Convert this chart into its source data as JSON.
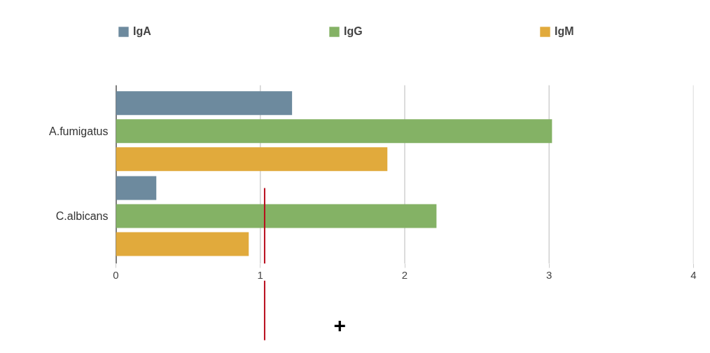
{
  "chart_data": {
    "type": "bar",
    "orientation": "horizontal",
    "categories": [
      "A.fumigatus",
      "C.albicans"
    ],
    "series": [
      {
        "name": "IgA",
        "color": "#6d8a9e",
        "values": [
          1.22,
          0.28
        ]
      },
      {
        "name": "IgG",
        "color": "#84b265",
        "values": [
          3.02,
          2.22
        ]
      },
      {
        "name": "IgM",
        "color": "#e1aa3c",
        "values": [
          1.88,
          0.92
        ]
      }
    ],
    "xlim": [
      0,
      4
    ],
    "xticks": [
      0,
      1,
      2,
      3,
      4
    ],
    "grid": "x",
    "legend": "top",
    "ref_lines": [
      {
        "axis": "x",
        "value": 1.03,
        "color": "#b80c1c"
      }
    ],
    "annotations": [
      "+"
    ]
  }
}
